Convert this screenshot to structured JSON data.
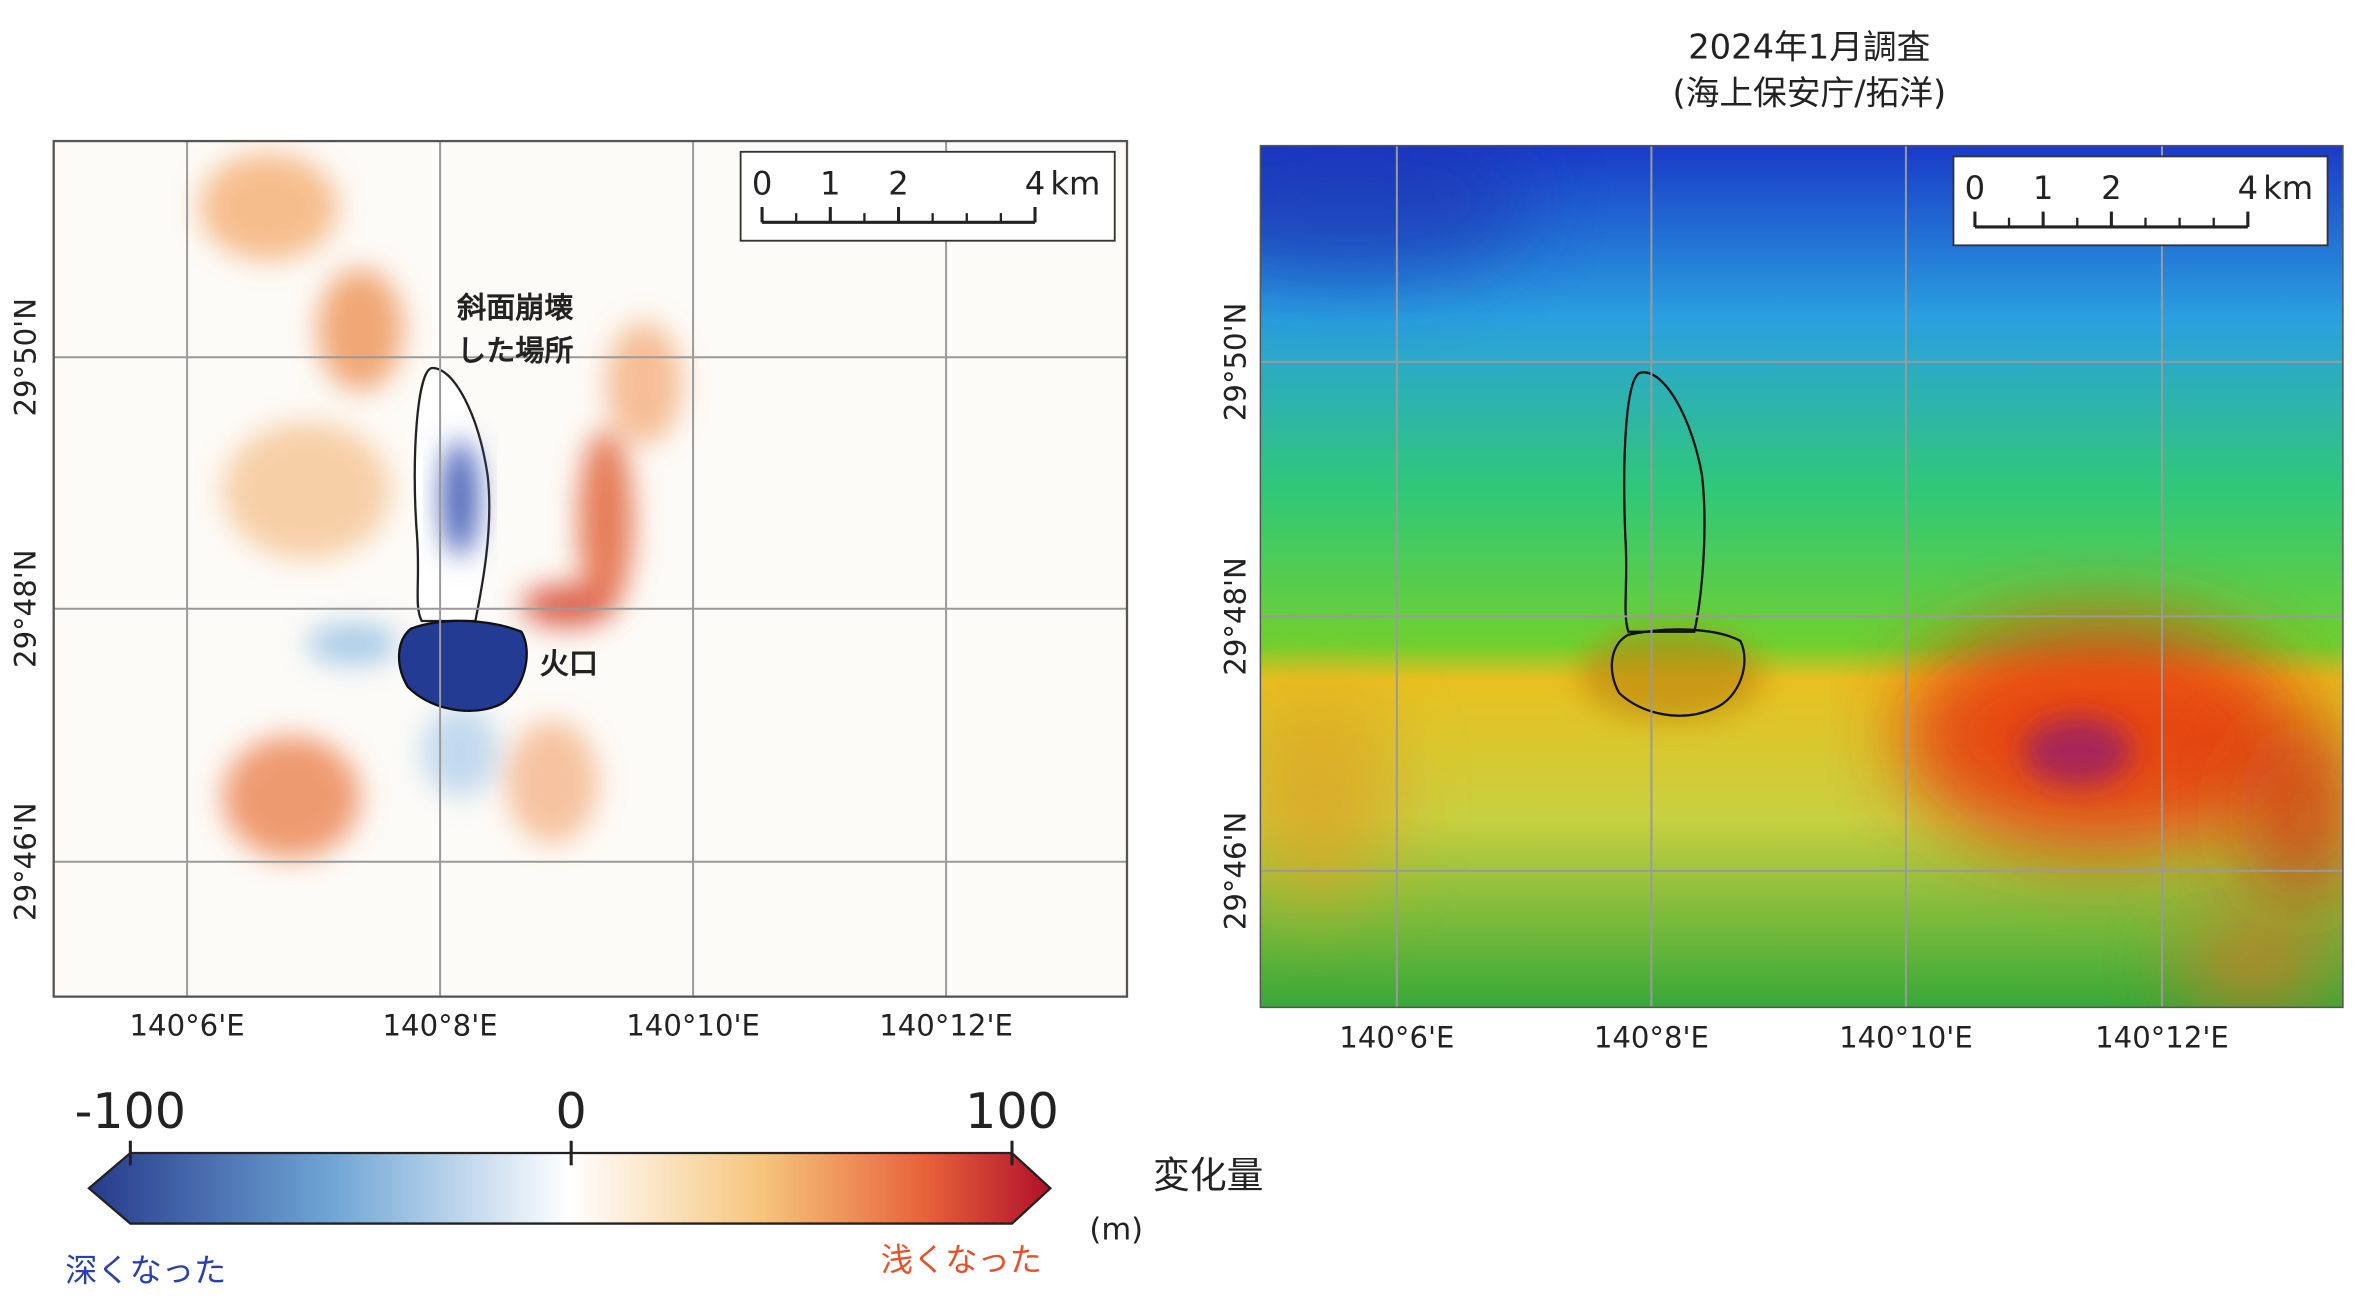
{
  "left_map": {
    "lon_labels": [
      "140°6'E",
      "140°8'E",
      "140°10'E",
      "140°12'E"
    ],
    "lat_labels": [
      "29°50'N",
      "29°48'N",
      "29°46'N"
    ],
    "annotations": {
      "landslide": [
        "斜面崩壊",
        "した場所"
      ],
      "crater": "火口"
    },
    "scalebar": {
      "ticks": [
        0,
        1,
        2,
        4
      ],
      "unit": "km"
    }
  },
  "right_map": {
    "title": "2024年1月調査",
    "subtitle": "(海上保安庁/拓洋)",
    "lon_labels": [
      "140°6'E",
      "140°8'E",
      "140°10'E",
      "140°12'E"
    ],
    "lat_labels": [
      "29°50'N",
      "29°48'N",
      "29°46'N"
    ],
    "scalebar": {
      "ticks": [
        0,
        1,
        2,
        4
      ],
      "unit": "km"
    }
  },
  "colorbar": {
    "range": [
      -100,
      100
    ],
    "ticks": [
      -100,
      0,
      100
    ],
    "title": "変化量",
    "unit": "(m)",
    "low_label": "深くなった",
    "high_label": "浅くなった"
  }
}
